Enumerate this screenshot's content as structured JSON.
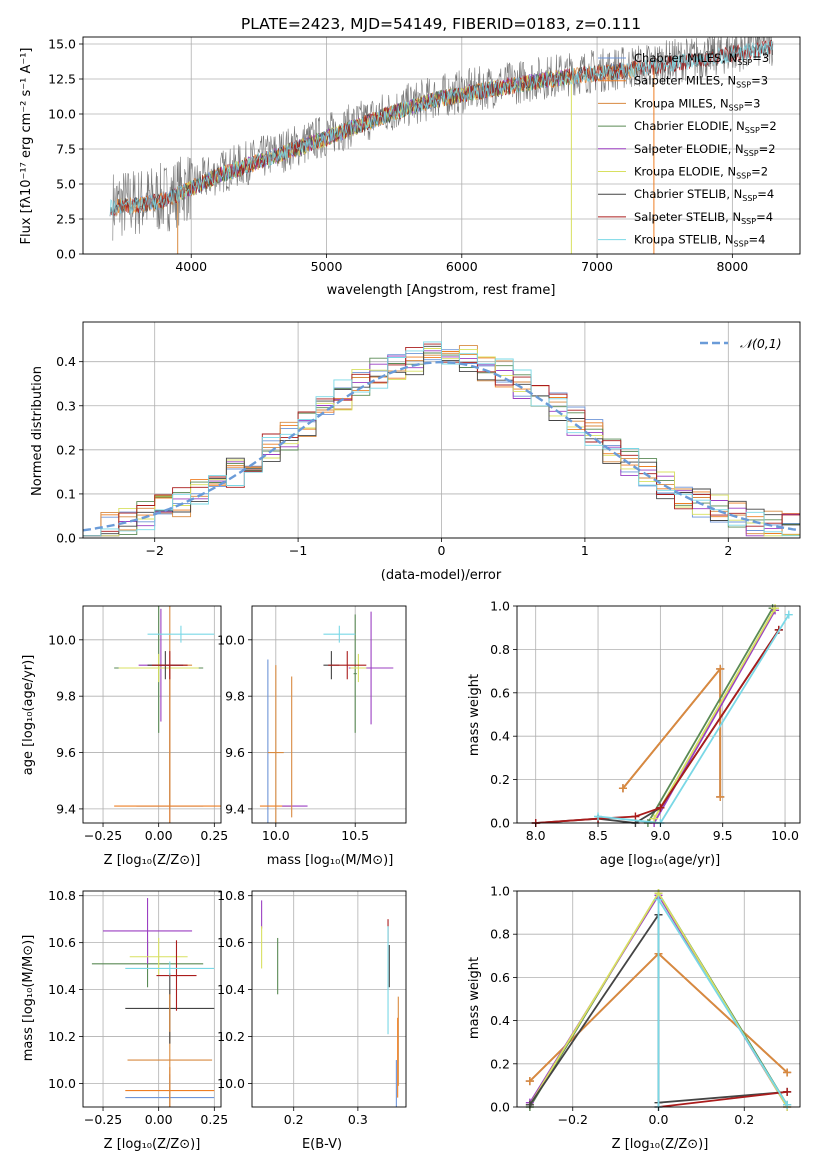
{
  "palette": {
    "Chabrier MILES": "#6f95d8",
    "Salpeter MILES": "#ee7f24",
    "Kroupa MILES": "#d88a40",
    "Chabrier ELODIE": "#5a8a55",
    "Salpeter ELODIE": "#9b3fc2",
    "Kroupa ELODIE": "#d8e060",
    "Chabrier STELIB": "#444444",
    "Salpeter STELIB": "#aa1c1c",
    "Kroupa STELIB": "#7ad8e6"
  },
  "chart_data": [
    {
      "id": "spectrum",
      "type": "line",
      "title": "PLATE=2423, MJD=54149, FIBERID=0183, z=0.111",
      "xlabel": "wavelength [Angstrom, rest frame]",
      "ylabel": "Flux [fλ10⁻¹⁷ erg cm⁻² s⁻¹ A⁻¹]",
      "xlim": [
        3200,
        8500
      ],
      "ylim": [
        0,
        15.5
      ],
      "xticks": [
        4000,
        5000,
        6000,
        7000,
        8000
      ],
      "yticks": [
        0.0,
        2.5,
        5.0,
        7.5,
        10.0,
        12.5,
        15.0
      ],
      "legend_position": "top-right",
      "legend": [
        "Chabrier MILES, N_SSP=3",
        "Salpeter MILES, N_SSP=3",
        "Kroupa MILES, N_SSP=3",
        "Chabrier ELODIE, N_SSP=2",
        "Salpeter ELODIE, N_SSP=2",
        "Kroupa ELODIE, N_SSP=2",
        "Chabrier STELIB, N_SSP=4",
        "Salpeter STELIB, N_SSP=4",
        "Kroupa STELIB, N_SSP=4"
      ],
      "legend_name": [
        "Chabrier MILES",
        "Salpeter MILES",
        "Kroupa MILES",
        "Chabrier ELODIE",
        "Salpeter ELODIE",
        "Kroupa ELODIE",
        "Chabrier STELIB",
        "Salpeter STELIB",
        "Kroupa STELIB"
      ],
      "legend_n": [
        "3",
        "3",
        "3",
        "2",
        "2",
        "2",
        "4",
        "4",
        "4"
      ],
      "continuum": [
        [
          3400,
          3.5
        ],
        [
          3600,
          3.7
        ],
        [
          3800,
          4.0
        ],
        [
          4000,
          4.9
        ],
        [
          4200,
          5.8
        ],
        [
          4500,
          6.8
        ],
        [
          4800,
          7.8
        ],
        [
          5000,
          8.5
        ],
        [
          5300,
          9.6
        ],
        [
          5500,
          10.3
        ],
        [
          5800,
          11.2
        ],
        [
          6000,
          11.6
        ],
        [
          6300,
          12.1
        ],
        [
          6600,
          12.6
        ],
        [
          6900,
          13.0
        ],
        [
          7200,
          13.3
        ],
        [
          7500,
          13.7
        ],
        [
          7800,
          14.1
        ],
        [
          8000,
          14.5
        ],
        [
          8300,
          15.0
        ]
      ],
      "model_ranges": {
        "Chabrier MILES": [
          3450,
          7300
        ],
        "Salpeter MILES": [
          3450,
          7300
        ],
        "Kroupa MILES": [
          3450,
          7300
        ],
        "Chabrier ELODIE": [
          3900,
          6800
        ],
        "Salpeter ELODIE": [
          3900,
          6800
        ],
        "Kroupa ELODIE": [
          3900,
          6800
        ],
        "Chabrier STELIB": [
          3400,
          8300
        ],
        "Salpeter STELIB": [
          3400,
          8300
        ],
        "Kroupa STELIB": [
          3400,
          8300
        ]
      }
    },
    {
      "id": "histogram",
      "type": "line",
      "xlabel": "(data-model)/error",
      "ylabel": "Normed distribution",
      "xlim": [
        -2.5,
        2.5
      ],
      "ylim": [
        0,
        0.49
      ],
      "xticks": [
        -2,
        -1,
        0,
        1,
        2
      ],
      "yticks": [
        0.0,
        0.1,
        0.2,
        0.3,
        0.4
      ],
      "legend_position": "top-right",
      "legend": [
        "𝒩(0,1)"
      ],
      "gauss_color": "#6a9bd8",
      "bins": 40
    },
    {
      "id": "age_vs_Z",
      "type": "scatter",
      "xlabel": "Z [log₁₀(Z/Z⊙)]",
      "ylabel": "age  [log₁₀(age/yr)]",
      "xlim": [
        -0.34,
        0.28
      ],
      "ylim": [
        9.35,
        10.12
      ],
      "xticks": [
        -0.25,
        0.0,
        0.25
      ],
      "yticks": [
        9.4,
        9.6,
        9.8,
        10.0
      ],
      "points": [
        {
          "model": "Chabrier MILES",
          "x": 0.05,
          "y": 9.41,
          "ex": 0.15,
          "ey": 0.5
        },
        {
          "model": "Salpeter MILES",
          "x": 0.05,
          "y": 9.41,
          "ex": 0.25,
          "ey": 0.5
        },
        {
          "model": "Kroupa MILES",
          "x": 0.05,
          "y": 9.91,
          "ex": 0.1,
          "ey": 0.5
        },
        {
          "model": "Chabrier ELODIE",
          "x": 0.0,
          "y": 9.9,
          "ex": 0.2,
          "ey": 0.23
        },
        {
          "model": "Salpeter ELODIE",
          "x": 0.01,
          "y": 9.91,
          "ex": 0.1,
          "ey": 0.2
        },
        {
          "model": "Kroupa ELODIE",
          "x": 0.0,
          "y": 9.9,
          "ex": 0.18,
          "ey": 0.05
        },
        {
          "model": "Chabrier STELIB",
          "x": 0.03,
          "y": 9.91,
          "ex": 0.08,
          "ey": 0.05
        },
        {
          "model": "Salpeter STELIB",
          "x": 0.05,
          "y": 9.91,
          "ex": 0.08,
          "ey": 0.05
        },
        {
          "model": "Kroupa STELIB",
          "x": 0.1,
          "y": 10.02,
          "ex": 0.15,
          "ey": 0.03
        }
      ]
    },
    {
      "id": "age_vs_mass",
      "type": "scatter",
      "xlabel": "mass [log₁₀(M/M⊙)]",
      "ylabel": "",
      "xlim": [
        9.85,
        10.82
      ],
      "ylim": [
        9.35,
        10.12
      ],
      "xticks": [
        10.0,
        10.5
      ],
      "yticks": [
        9.4,
        9.6,
        9.8,
        10.0
      ],
      "points": [
        {
          "model": "Chabrier MILES",
          "x": 9.95,
          "y": 9.6,
          "ex": 0,
          "ey": 0.33
        },
        {
          "model": "Salpeter MILES",
          "x": 10.0,
          "y": 9.41,
          "ex": 0.1,
          "ey": 0
        },
        {
          "model": "Kroupa MILES",
          "x": 10.0,
          "y": 9.6,
          "ex": 0.05,
          "ey": 0.31
        },
        {
          "model": "Chabrier ELODIE",
          "x": 10.5,
          "y": 9.88,
          "ex": 0.01,
          "ey": 0.21
        },
        {
          "model": "Salpeter ELODIE",
          "x": 10.6,
          "y": 9.9,
          "ex": 0.14,
          "ey": 0.2
        },
        {
          "model": "Kroupa ELODIE",
          "x": 10.52,
          "y": 9.9,
          "ex": 0.05,
          "ey": 0.05
        },
        {
          "model": "Chabrier STELIB",
          "x": 10.35,
          "y": 9.91,
          "ex": 0.05,
          "ey": 0.05
        },
        {
          "model": "Salpeter STELIB",
          "x": 10.45,
          "y": 9.91,
          "ex": 0.12,
          "ey": 0.05
        },
        {
          "model": "Kroupa STELIB",
          "x": 10.4,
          "y": 10.02,
          "ex": 0.1,
          "ey": 0.03
        },
        {
          "model": "Salpeter ELODIE",
          "x": 10.12,
          "y": 9.41,
          "ex": 0.08,
          "ey": 0
        },
        {
          "model": "Kroupa MILES",
          "x": 10.1,
          "y": 9.62,
          "ex": 0,
          "ey": 0.25
        }
      ]
    },
    {
      "id": "mass_weight_vs_age",
      "type": "line",
      "xlabel": "age  [log₁₀(age/yr)]",
      "ylabel": "mass weight",
      "xlim": [
        7.85,
        10.12
      ],
      "ylim": [
        0,
        1.0
      ],
      "xticks": [
        8.0,
        8.5,
        9.0,
        9.5,
        10.0
      ],
      "yticks": [
        0.0,
        0.2,
        0.4,
        0.6,
        0.8,
        1.0
      ],
      "series": [
        {
          "model": "Chabrier MILES",
          "x": [
            8.7,
            9.48,
            9.48
          ],
          "y": [
            0.16,
            0.71,
            0.12
          ]
        },
        {
          "model": "Salpeter MILES",
          "x": [
            8.7,
            9.48,
            9.48
          ],
          "y": [
            0.16,
            0.71,
            0.12
          ]
        },
        {
          "model": "Kroupa MILES",
          "x": [
            8.7,
            9.48,
            9.48
          ],
          "y": [
            0.16,
            0.71,
            0.12
          ]
        },
        {
          "model": "Chabrier ELODIE",
          "x": [
            8.9,
            9.9
          ],
          "y": [
            0.0,
            0.99
          ]
        },
        {
          "model": "Salpeter ELODIE",
          "x": [
            8.95,
            9.92
          ],
          "y": [
            0.0,
            0.98
          ]
        },
        {
          "model": "Kroupa ELODIE",
          "x": [
            8.95,
            9.92
          ],
          "y": [
            0.02,
            0.99
          ]
        },
        {
          "model": "Chabrier STELIB",
          "x": [
            8.0,
            8.5,
            8.8,
            9.0,
            9.95
          ],
          "y": [
            0.0,
            0.02,
            0.0,
            0.07,
            0.89
          ]
        },
        {
          "model": "Salpeter STELIB",
          "x": [
            8.0,
            8.5,
            8.8,
            9.0,
            9.95
          ],
          "y": [
            0.0,
            0.02,
            0.03,
            0.07,
            0.89
          ]
        },
        {
          "model": "Kroupa STELIB",
          "x": [
            8.5,
            9.0,
            10.03
          ],
          "y": [
            0.03,
            0.0,
            0.96
          ]
        }
      ]
    },
    {
      "id": "mass_vs_Z",
      "type": "scatter",
      "xlabel": "Z [log₁₀(Z/Z⊙)]",
      "ylabel": "mass [log₁₀(M/M⊙)]",
      "xlim": [
        -0.34,
        0.28
      ],
      "ylim": [
        9.9,
        10.82
      ],
      "xticks": [
        -0.25,
        0.0,
        0.25
      ],
      "yticks": [
        10.0,
        10.2,
        10.4,
        10.6,
        10.8
      ],
      "points": [
        {
          "model": "Chabrier MILES",
          "x": 0.05,
          "y": 9.94,
          "ex": 0.2,
          "ey": 0.1
        },
        {
          "model": "Salpeter MILES",
          "x": 0.05,
          "y": 9.97,
          "ex": 0.2,
          "ey": 0.1
        },
        {
          "model": "Kroupa MILES",
          "x": 0.05,
          "y": 10.1,
          "ex": 0.19,
          "ey": 0.3
        },
        {
          "model": "Chabrier ELODIE",
          "x": -0.05,
          "y": 10.51,
          "ex": 0.25,
          "ey": 0.1
        },
        {
          "model": "Salpeter ELODIE",
          "x": -0.05,
          "y": 10.65,
          "ex": 0.2,
          "ey": 0.14
        },
        {
          "model": "Kroupa ELODIE",
          "x": 0.0,
          "y": 10.54,
          "ex": 0.13,
          "ey": 0.08
        },
        {
          "model": "Chabrier STELIB",
          "x": 0.05,
          "y": 10.32,
          "ex": 0.2,
          "ey": 0.15
        },
        {
          "model": "Salpeter STELIB",
          "x": 0.08,
          "y": 10.46,
          "ex": 0.09,
          "ey": 0.15
        },
        {
          "model": "Kroupa STELIB",
          "x": 0.05,
          "y": 10.49,
          "ex": 0.2,
          "ey": 0.03
        },
        {
          "model": "Kroupa MILES",
          "x": 0.05,
          "y": 10.3,
          "ex": 0.0,
          "ey": 0.08
        }
      ]
    },
    {
      "id": "mass_vs_EBV",
      "type": "scatter",
      "xlabel": "E(B-V)",
      "ylabel": "",
      "xlim": [
        0.135,
        0.375
      ],
      "ylim": [
        9.9,
        10.82
      ],
      "xticks": [
        0.2,
        0.3
      ],
      "yticks": [
        10.0,
        10.2,
        10.4,
        10.6,
        10.8
      ],
      "points": [
        {
          "model": "Salpeter ELODIE",
          "x": 0.15,
          "y": 10.72,
          "ex": 0,
          "ey": 0.06
        },
        {
          "model": "Kroupa ELODIE",
          "x": 0.15,
          "y": 10.58,
          "ex": 0,
          "ey": 0.09
        },
        {
          "model": "Chabrier ELODIE",
          "x": 0.175,
          "y": 10.5,
          "ex": 0,
          "ey": 0.12
        },
        {
          "model": "Salpeter STELIB",
          "x": 0.347,
          "y": 10.65,
          "ex": 0,
          "ey": 0.05
        },
        {
          "model": "Kroupa STELIB",
          "x": 0.347,
          "y": 10.44,
          "ex": 0,
          "ey": 0.23
        },
        {
          "model": "Chabrier STELIB",
          "x": 0.349,
          "y": 10.5,
          "ex": 0,
          "ey": 0.09
        },
        {
          "model": "Kroupa MILES",
          "x": 0.363,
          "y": 10.18,
          "ex": 0,
          "ey": 0.19
        },
        {
          "model": "Salpeter MILES",
          "x": 0.362,
          "y": 10.11,
          "ex": 0,
          "ey": 0.17
        },
        {
          "model": "Chabrier MILES",
          "x": 0.36,
          "y": 10.0,
          "ex": 0,
          "ey": 0.1
        }
      ]
    },
    {
      "id": "mass_weight_vs_Z",
      "type": "line",
      "xlabel": "Z [log₁₀(Z/Z⊙)]",
      "ylabel": "mass weight",
      "xlim": [
        -0.33,
        0.33
      ],
      "ylim": [
        0,
        1.0
      ],
      "xticks": [
        -0.2,
        0.0,
        0.2
      ],
      "yticks": [
        0.0,
        0.2,
        0.4,
        0.6,
        0.8,
        1.0
      ],
      "series": [
        {
          "model": "Chabrier MILES",
          "x": [
            -0.3,
            0.0,
            0.3
          ],
          "y": [
            0.12,
            0.71,
            0.16
          ]
        },
        {
          "model": "Salpeter MILES",
          "x": [
            -0.3,
            0.0,
            0.3
          ],
          "y": [
            0.12,
            0.71,
            0.16
          ]
        },
        {
          "model": "Kroupa MILES",
          "x": [
            -0.3,
            0.0,
            0.3
          ],
          "y": [
            0.12,
            0.71,
            0.16
          ]
        },
        {
          "model": "Chabrier ELODIE",
          "x": [
            -0.3,
            0.0,
            0.3
          ],
          "y": [
            0.0,
            0.99,
            0.01
          ]
        },
        {
          "model": "Salpeter ELODIE",
          "x": [
            -0.3,
            0.0,
            0.3
          ],
          "y": [
            0.02,
            0.98,
            0.0
          ]
        },
        {
          "model": "Kroupa ELODIE",
          "x": [
            -0.3,
            0.0,
            0.3
          ],
          "y": [
            0.01,
            0.99,
            0.0
          ]
        },
        {
          "model": "Chabrier STELIB",
          "x": [
            -0.3,
            0.0,
            0.0,
            0.3
          ],
          "y": [
            0.01,
            0.89,
            0.02,
            0.07
          ]
        },
        {
          "model": "Salpeter STELIB",
          "x": [
            0.0,
            0.3
          ],
          "y": [
            0.0,
            0.07
          ]
        },
        {
          "model": "Kroupa STELIB",
          "x": [
            0.0,
            0.0,
            0.3
          ],
          "y": [
            0.0,
            0.96,
            0.01
          ]
        }
      ]
    }
  ]
}
